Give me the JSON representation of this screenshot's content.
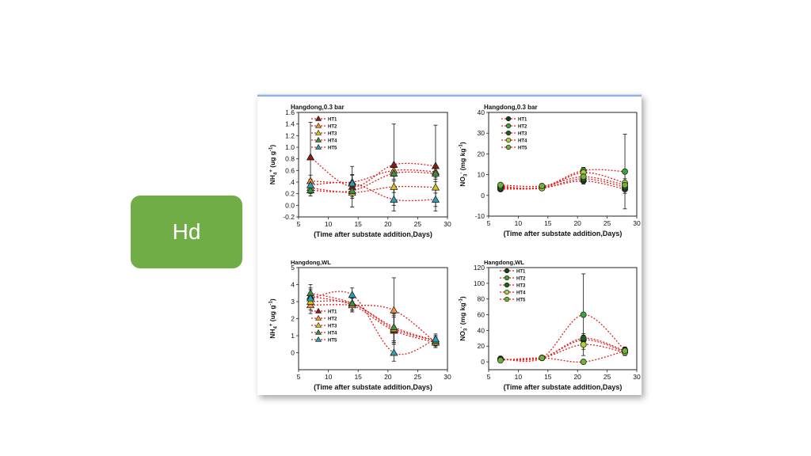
{
  "badge": {
    "label": "Hd",
    "color": "#70ad47"
  },
  "legend_labels": [
    "HT1",
    "HT2",
    "HT3",
    "HT4",
    "HT5"
  ],
  "series_colors": [
    "#8b1a1a",
    "#f2913c",
    "#d8c21a",
    "#3d8f45",
    "#2e9fb0"
  ],
  "nitrate_colors": [
    "#1e3d1e",
    "#3aa43a",
    "#1f5f1f",
    "#a8d43a",
    "#6cb33a"
  ],
  "chart_data": [
    {
      "type": "line",
      "title": "Hangdong,0.3 bar",
      "ylabel_main": "NH",
      "ylabel_sub": "4",
      "ylabel_sup": "+",
      "ylabel_rest": " (ug g",
      "ylabel_unit_sup": "-1",
      "ylabel_end": ")",
      "xlabel": "(Time after substate addition,Days)",
      "x": [
        7,
        14,
        21,
        28
      ],
      "xlim": [
        5,
        30
      ],
      "ylim": [
        -0.2,
        1.6
      ],
      "xticks": [
        "5",
        "10",
        "15",
        "20",
        "25",
        "30"
      ],
      "yticks": [
        "-0.2",
        "0.0",
        "0.2",
        ".4",
        "0.6",
        "0.8",
        "1.0",
        "1.2",
        "1.4",
        "1.6"
      ],
      "marker": "triangle",
      "legend_position": "top-left",
      "series": [
        {
          "name": "HT1",
          "values": [
            0.83,
            0.32,
            0.7,
            0.68
          ],
          "err": [
            0.6,
            0.35,
            0.7,
            0.7
          ]
        },
        {
          "name": "HT2",
          "values": [
            0.42,
            0.4,
            0.6,
            0.58
          ],
          "err": [
            0.1,
            0.12,
            0.1,
            0.1
          ]
        },
        {
          "name": "HT3",
          "values": [
            0.3,
            0.22,
            0.32,
            0.31
          ],
          "err": [
            0.1,
            0.1,
            0.1,
            0.1
          ]
        },
        {
          "name": "HT4",
          "values": [
            0.26,
            0.25,
            0.55,
            0.55
          ],
          "err": [
            0.1,
            0.1,
            0.1,
            0.1
          ]
        },
        {
          "name": "HT5",
          "values": [
            0.35,
            0.38,
            0.1,
            0.1
          ],
          "err": [
            0.1,
            0.15,
            0.2,
            0.2
          ]
        }
      ]
    },
    {
      "type": "line",
      "title": "Hangdong,0.3 bar",
      "ylabel_main": "NO",
      "ylabel_sub": "3",
      "ylabel_sup": "-",
      "ylabel_rest": " (mg kg",
      "ylabel_unit_sup": "-1",
      "ylabel_end": ")",
      "xlabel": "(Time after substate addition,Days)",
      "x": [
        7,
        14,
        21,
        28
      ],
      "xlim": [
        5,
        30
      ],
      "ylim": [
        -10,
        40
      ],
      "xticks": [
        "5",
        "10",
        "15",
        "20",
        "25",
        "30"
      ],
      "yticks": [
        "-10",
        "0",
        "10",
        "20",
        "30",
        "40"
      ],
      "marker": "circle",
      "legend_position": "top-left",
      "series": [
        {
          "name": "HT1",
          "values": [
            3,
            3.5,
            7,
            3
          ],
          "err": [
            1,
            1,
            1.5,
            2
          ]
        },
        {
          "name": "HT2",
          "values": [
            4,
            4,
            12,
            11.5
          ],
          "err": [
            1,
            1,
            1.5,
            18
          ]
        },
        {
          "name": "HT3",
          "values": [
            3.5,
            3.5,
            8,
            4
          ],
          "err": [
            1,
            1,
            1.5,
            2
          ]
        },
        {
          "name": "HT4",
          "values": [
            4.5,
            3.5,
            11,
            6
          ],
          "err": [
            1,
            1,
            1.5,
            2
          ]
        },
        {
          "name": "HT5",
          "values": [
            5,
            4.5,
            9,
            5
          ],
          "err": [
            1,
            1,
            1.5,
            2
          ]
        }
      ]
    },
    {
      "type": "line",
      "title": "Hangdong,WL",
      "ylabel_main": "NH",
      "ylabel_sub": "4",
      "ylabel_sup": "+",
      "ylabel_rest": " (ug g",
      "ylabel_unit_sup": "-1",
      "ylabel_end": ")",
      "xlabel": "(Time after substate addition,Days)",
      "x": [
        7,
        14,
        21,
        28
      ],
      "xlim": [
        5,
        30
      ],
      "ylim": [
        -1,
        5
      ],
      "xticks": [
        "5",
        "10",
        "15",
        "20",
        "25",
        "30"
      ],
      "yticks": [
        "0",
        "1",
        "2",
        "3",
        "4",
        "5"
      ],
      "marker": "triangle",
      "legend_position": "bottom-left",
      "series": [
        {
          "name": "HT1",
          "values": [
            3.3,
            2.8,
            1.3,
            0.6
          ],
          "err": [
            0.5,
            0.4,
            0.8,
            0.3
          ]
        },
        {
          "name": "HT2",
          "values": [
            2.8,
            2.8,
            2.5,
            0.6
          ],
          "err": [
            0.5,
            0.4,
            1.9,
            0.3
          ]
        },
        {
          "name": "HT3",
          "values": [
            3.0,
            2.9,
            1.4,
            0.7
          ],
          "err": [
            0.5,
            0.4,
            0.8,
            0.3
          ]
        },
        {
          "name": "HT4",
          "values": [
            3.5,
            2.9,
            1.5,
            0.7
          ],
          "err": [
            0.5,
            0.4,
            0.8,
            0.3
          ]
        },
        {
          "name": "HT5",
          "values": [
            3.2,
            3.4,
            0.0,
            0.8
          ],
          "err": [
            0.5,
            0.4,
            0.5,
            0.3
          ]
        }
      ]
    },
    {
      "type": "line",
      "title": "Hangdong,WL",
      "ylabel_main": "NO",
      "ylabel_sub": "3",
      "ylabel_sup": "-",
      "ylabel_rest": " (mg kg",
      "ylabel_unit_sup": "-1",
      "ylabel_end": ")",
      "xlabel": "(Time after substate addition,Days)",
      "x": [
        7,
        14,
        21,
        28
      ],
      "xlim": [
        5,
        30
      ],
      "ylim": [
        -10,
        120
      ],
      "xticks": [
        "5",
        "10",
        "15",
        "20",
        "25",
        "30"
      ],
      "yticks": [
        "0",
        "20",
        "40",
        "60",
        "80",
        "100",
        "120"
      ],
      "marker": "circle",
      "legend_position": "top-left",
      "series": [
        {
          "name": "HT1",
          "values": [
            3,
            5,
            28,
            13
          ],
          "err": [
            2,
            2,
            6,
            4
          ]
        },
        {
          "name": "HT2",
          "values": [
            4,
            5,
            60,
            15
          ],
          "err": [
            2,
            2,
            52,
            4
          ]
        },
        {
          "name": "HT3",
          "values": [
            3,
            5,
            30,
            14
          ],
          "err": [
            2,
            2,
            6,
            4
          ]
        },
        {
          "name": "HT4",
          "values": [
            3,
            5,
            22,
            12
          ],
          "err": [
            2,
            2,
            6,
            4
          ]
        },
        {
          "name": "HT5",
          "values": [
            2,
            5,
            0,
            14
          ],
          "err": [
            2,
            2,
            2,
            4
          ]
        }
      ]
    }
  ]
}
